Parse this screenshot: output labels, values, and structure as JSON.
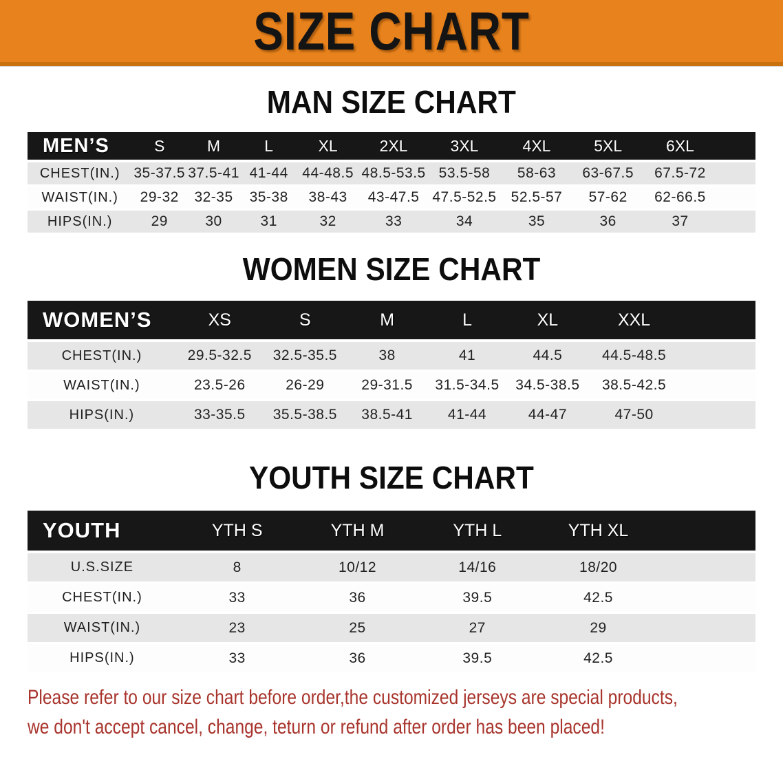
{
  "banner": {
    "title": "SIZE CHART"
  },
  "sections": [
    {
      "title": "MAN SIZE CHART",
      "group_label": "MEN’S",
      "columns": [
        "S",
        "M",
        "L",
        "XL",
        "2XL",
        "3XL",
        "4XL",
        "5XL",
        "6XL"
      ],
      "rows": [
        {
          "label": "CHEST(IN.)",
          "values": [
            "35-37.5",
            "37.5-41",
            "41-44",
            "44-48.5",
            "48.5-53.5",
            "53.5-58",
            "58-63",
            "63-67.5",
            "67.5-72"
          ]
        },
        {
          "label": "WAIST(IN.)",
          "values": [
            "29-32",
            "32-35",
            "35-38",
            "38-43",
            "43-47.5",
            "47.5-52.5",
            "52.5-57",
            "57-62",
            "62-66.5"
          ]
        },
        {
          "label": "HIPS(IN.)",
          "values": [
            "29",
            "30",
            "31",
            "32",
            "33",
            "34",
            "35",
            "36",
            "37"
          ]
        }
      ]
    },
    {
      "title": "WOMEN SIZE CHART",
      "group_label": "WOMEN’S",
      "columns": [
        "XS",
        "S",
        "M",
        "L",
        "XL",
        "XXL"
      ],
      "rows": [
        {
          "label": "CHEST(IN.)",
          "values": [
            "29.5-32.5",
            "32.5-35.5",
            "38",
            "41",
            "44.5",
            "44.5-48.5"
          ]
        },
        {
          "label": "WAIST(IN.)",
          "values": [
            "23.5-26",
            "26-29",
            "29-31.5",
            "31.5-34.5",
            "34.5-38.5",
            "38.5-42.5"
          ]
        },
        {
          "label": "HIPS(IN.)",
          "values": [
            "33-35.5",
            "35.5-38.5",
            "38.5-41",
            "41-44",
            "44-47",
            "47-50"
          ]
        }
      ]
    },
    {
      "title": "YOUTH SIZE CHART",
      "group_label": "YOUTH",
      "columns": [
        "YTH S",
        "YTH M",
        "YTH L",
        "YTH XL"
      ],
      "rows": [
        {
          "label": "U.S.SIZE",
          "values": [
            "8",
            "10/12",
            "14/16",
            "18/20"
          ]
        },
        {
          "label": "CHEST(IN.)",
          "values": [
            "33",
            "36",
            "39.5",
            "42.5"
          ]
        },
        {
          "label": "WAIST(IN.)",
          "values": [
            "23",
            "25",
            "27",
            "29"
          ]
        },
        {
          "label": "HIPS(IN.)",
          "values": [
            "33",
            "36",
            "39.5",
            "42.5"
          ]
        }
      ]
    }
  ],
  "footer": {
    "line1": "Please refer to our size chart before order,the customized jerseys are special products,",
    "line2": "we don't accept cancel, change, teturn or refund after order has been placed!"
  },
  "colors": {
    "banner_bg": "#e8821c",
    "banner_border": "#c9700f",
    "header_bg": "#171717",
    "row_gray": "#e6e6e6",
    "footer_text": "#a8342c"
  }
}
